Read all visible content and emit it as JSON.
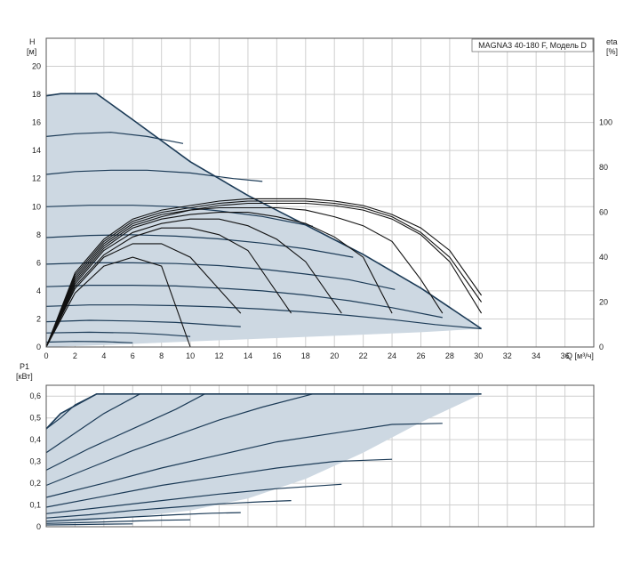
{
  "chart_data": [
    {
      "type": "line",
      "panel": "head-efficiency",
      "title": "MAGNA3 40-180 F, Модель D",
      "ylabel": "H",
      "yunit": "[м]",
      "y2label": "eta",
      "y2unit": "[%]",
      "xlabel": "Q",
      "xunit": "[м³/ч]",
      "xlim": [
        0,
        38
      ],
      "ylim": [
        0,
        22
      ],
      "y2lim": [
        0,
        137.5
      ],
      "xticks": [
        "0",
        "2",
        "4",
        "6",
        "8",
        "10",
        "12",
        "14",
        "16",
        "18",
        "20",
        "22",
        "24",
        "26",
        "28",
        "30",
        "32",
        "34",
        "36"
      ],
      "yticks": [
        "0",
        "2",
        "4",
        "6",
        "8",
        "10",
        "12",
        "14",
        "16",
        "18",
        "20"
      ],
      "y2ticks": [
        "0",
        "20",
        "40",
        "60",
        "80",
        "100"
      ],
      "grid": true,
      "colors": {
        "fill": "#cdd8e2",
        "curve": "#1c3b57",
        "eff": "#111111",
        "grid": "#cfcfcf"
      },
      "envelope": {
        "x": [
          0,
          1,
          3.5,
          6,
          10,
          14,
          18,
          22,
          26,
          30.2,
          30.2,
          26,
          20,
          14,
          10,
          6,
          3,
          0
        ],
        "y": [
          17.9,
          18.05,
          18.05,
          16.2,
          13.2,
          10.8,
          8.7,
          6.6,
          4.2,
          1.3,
          1.3,
          1.05,
          0.8,
          0.55,
          0.4,
          0.22,
          0.1,
          0.0
        ]
      },
      "speed_curves": [
        {
          "x": [
            0,
            2,
            4.5,
            7,
            9.5
          ],
          "y": [
            15.0,
            15.2,
            15.3,
            15.0,
            14.5
          ]
        },
        {
          "x": [
            0,
            2,
            4.5,
            7,
            10,
            13,
            15
          ],
          "y": [
            12.3,
            12.5,
            12.6,
            12.6,
            12.4,
            12.0,
            11.8
          ]
        },
        {
          "x": [
            0,
            3,
            6,
            9,
            12,
            15,
            18.5
          ],
          "y": [
            10.0,
            10.1,
            10.1,
            10.0,
            9.7,
            9.3,
            8.6
          ]
        },
        {
          "x": [
            0,
            3,
            6,
            9,
            12,
            15,
            18,
            21.3
          ],
          "y": [
            7.8,
            7.95,
            8.0,
            7.9,
            7.7,
            7.4,
            7.0,
            6.4
          ]
        },
        {
          "x": [
            0,
            3,
            6,
            9,
            12,
            15,
            18,
            21,
            24.2
          ],
          "y": [
            5.9,
            6.0,
            6.0,
            5.95,
            5.8,
            5.55,
            5.2,
            4.8,
            4.1
          ]
        },
        {
          "x": [
            0,
            3,
            6,
            9,
            12,
            15,
            18,
            21,
            24,
            27.5
          ],
          "y": [
            4.3,
            4.4,
            4.4,
            4.35,
            4.2,
            4.0,
            3.7,
            3.3,
            2.8,
            2.1
          ]
        },
        {
          "x": [
            0,
            3,
            6,
            9,
            12,
            15,
            18,
            21,
            24,
            27,
            30.2
          ],
          "y": [
            2.9,
            3.0,
            3.0,
            2.95,
            2.85,
            2.7,
            2.5,
            2.25,
            1.95,
            1.6,
            1.3
          ]
        },
        {
          "x": [
            0,
            3,
            6,
            9,
            12,
            13.5
          ],
          "y": [
            1.8,
            1.9,
            1.85,
            1.75,
            1.55,
            1.45
          ]
        },
        {
          "x": [
            0,
            3,
            6,
            8,
            10
          ],
          "y": [
            1.0,
            1.05,
            1.0,
            0.9,
            0.75
          ]
        },
        {
          "x": [
            0,
            2,
            4,
            6
          ],
          "y": [
            0.35,
            0.4,
            0.38,
            0.3
          ]
        }
      ],
      "efficiency_curves": [
        {
          "x": [
            0,
            2,
            4,
            6,
            8,
            10
          ],
          "y": [
            0,
            24,
            36,
            40,
            36,
            0
          ]
        },
        {
          "x": [
            0,
            2,
            4,
            6,
            8,
            10,
            13.5
          ],
          "y": [
            0,
            26,
            40,
            46,
            46,
            40,
            15
          ]
        },
        {
          "x": [
            0,
            2,
            4,
            6,
            8,
            10,
            12,
            14,
            17
          ],
          "y": [
            0,
            27,
            41,
            49,
            53,
            53,
            50,
            43,
            15
          ]
        },
        {
          "x": [
            0,
            2,
            4,
            6,
            8,
            10,
            12,
            14,
            16,
            18,
            20.5
          ],
          "y": [
            0,
            28,
            43,
            51,
            55,
            57,
            57,
            54,
            48,
            38,
            15
          ]
        },
        {
          "x": [
            0,
            2,
            4,
            6,
            8,
            10,
            12,
            14,
            16,
            18,
            20,
            22,
            24
          ],
          "y": [
            0,
            29,
            44,
            53,
            57,
            59,
            60,
            60,
            58,
            55,
            49,
            40,
            15
          ]
        },
        {
          "x": [
            0,
            2,
            4,
            6,
            8,
            10,
            12,
            14,
            16,
            18,
            20,
            22,
            24,
            26,
            27.5
          ],
          "y": [
            0,
            30,
            45,
            54,
            58,
            61,
            62,
            62,
            62,
            61,
            58,
            54,
            47,
            30,
            15
          ]
        },
        {
          "x": [
            0,
            2,
            4,
            6,
            8,
            10,
            12,
            14,
            16,
            18,
            20,
            22,
            24,
            26,
            28,
            30.2
          ],
          "y": [
            0,
            31,
            46,
            55,
            59,
            61,
            63,
            64,
            64,
            64,
            63,
            61,
            57,
            50,
            38,
            15
          ]
        },
        {
          "x": [
            0,
            2,
            4,
            6,
            8,
            10,
            12,
            14,
            16,
            18,
            20,
            22,
            24,
            26,
            28,
            30.2
          ],
          "y": [
            0,
            32,
            47,
            56,
            60,
            62,
            64,
            65,
            65,
            65,
            64,
            62,
            58,
            51,
            40,
            20
          ]
        },
        {
          "x": [
            0,
            2,
            4,
            6,
            8,
            10,
            12,
            14,
            16,
            18,
            20,
            22,
            24,
            26,
            28,
            30.2
          ],
          "y": [
            0,
            33,
            48,
            57,
            61,
            63,
            65,
            66,
            66,
            66,
            65,
            63,
            59,
            53,
            43,
            23
          ]
        }
      ]
    },
    {
      "type": "line",
      "panel": "power",
      "ylabel": "P1",
      "yunit": "[кВт]",
      "xlim": [
        0,
        38
      ],
      "ylim": [
        0,
        0.65
      ],
      "yticks": [
        "0",
        "0,1",
        "0,2",
        "0,3",
        "0,4",
        "0,5",
        "0,6"
      ],
      "grid": true,
      "envelope": {
        "x": [
          0,
          1,
          3.5,
          8,
          14,
          20,
          26,
          30.2,
          30.2,
          26,
          22,
          18,
          14,
          10,
          6,
          3,
          0
        ],
        "y": [
          0.45,
          0.52,
          0.61,
          0.61,
          0.61,
          0.61,
          0.61,
          0.61,
          0.61,
          0.48,
          0.34,
          0.22,
          0.13,
          0.075,
          0.045,
          0.025,
          0.015
        ]
      },
      "speed_curves": [
        {
          "x": [
            0,
            1,
            2,
            3.5
          ],
          "y": [
            0.45,
            0.5,
            0.56,
            0.61
          ]
        },
        {
          "x": [
            0,
            2,
            4,
            6.5
          ],
          "y": [
            0.34,
            0.43,
            0.52,
            0.61
          ]
        },
        {
          "x": [
            0,
            3,
            6,
            9,
            11
          ],
          "y": [
            0.26,
            0.36,
            0.45,
            0.54,
            0.61
          ]
        },
        {
          "x": [
            0,
            3,
            6,
            9,
            12,
            15,
            18.5
          ],
          "y": [
            0.19,
            0.27,
            0.35,
            0.42,
            0.49,
            0.55,
            0.61
          ]
        },
        {
          "x": [
            0,
            4,
            8,
            12,
            16,
            20,
            24,
            27.5
          ],
          "y": [
            0.135,
            0.2,
            0.27,
            0.33,
            0.39,
            0.43,
            0.47,
            0.475
          ]
        },
        {
          "x": [
            0,
            4,
            8,
            12,
            16,
            20,
            24
          ],
          "y": [
            0.09,
            0.14,
            0.19,
            0.23,
            0.27,
            0.3,
            0.31
          ]
        },
        {
          "x": [
            0,
            4,
            8,
            12,
            16,
            20.5
          ],
          "y": [
            0.06,
            0.09,
            0.12,
            0.15,
            0.175,
            0.195
          ]
        },
        {
          "x": [
            0,
            3,
            6,
            9,
            12,
            15,
            17
          ],
          "y": [
            0.04,
            0.055,
            0.075,
            0.09,
            0.105,
            0.115,
            0.12
          ]
        },
        {
          "x": [
            0,
            3,
            6,
            9,
            11.5,
            13.5
          ],
          "y": [
            0.025,
            0.035,
            0.045,
            0.055,
            0.062,
            0.065
          ]
        },
        {
          "x": [
            0,
            3,
            6,
            8,
            10
          ],
          "y": [
            0.015,
            0.02,
            0.026,
            0.03,
            0.032
          ]
        },
        {
          "x": [
            0,
            2,
            4,
            6
          ],
          "y": [
            0.008,
            0.01,
            0.012,
            0.013
          ]
        }
      ]
    }
  ]
}
